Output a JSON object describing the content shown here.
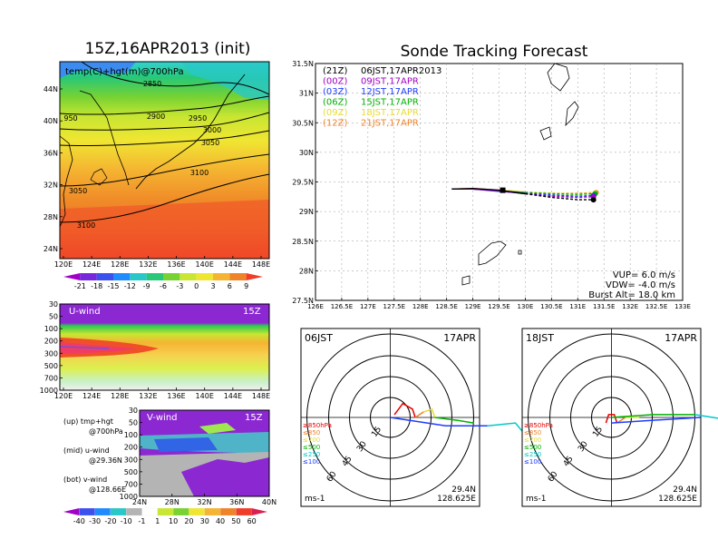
{
  "colors": {
    "bg": "#ffffff",
    "line": "#000000"
  },
  "left_title": "15Z,16APR2013 (init)",
  "right_title": "Sonde Tracking Forecast",
  "top_map": {
    "label": "temp(C)+hgt(m)@700hPa",
    "x_ticks": [
      "120E",
      "124E",
      "128E",
      "132E",
      "136E",
      "140E",
      "144E",
      "148E"
    ],
    "y_ticks": [
      "44N",
      "40N",
      "36N",
      "32N",
      "28N",
      "24N"
    ],
    "contour_labels": [
      "2850",
      "2900",
      "2950",
      "3000",
      "3050",
      "3100",
      "3050",
      "3100",
      "950"
    ],
    "colorbar_labels": [
      "-21",
      "-18",
      "-15",
      "-12",
      "-9",
      "-6",
      "-3",
      "0",
      "3",
      "6",
      "9"
    ]
  },
  "u_panel": {
    "label": "U-wind",
    "time": "15Z",
    "y_ticks": [
      "30",
      "50",
      "100",
      "200",
      "300",
      "500",
      "700",
      "1000"
    ],
    "x_ticks": [
      "120E",
      "124E",
      "128E",
      "132E",
      "136E",
      "140E",
      "144E",
      "148E"
    ]
  },
  "v_panel": {
    "label": "V-wind",
    "time": "15Z",
    "y_ticks": [
      "30",
      "50",
      "100",
      "200",
      "300",
      "500",
      "700",
      "1000"
    ],
    "x_ticks": [
      "24N",
      "28N",
      "32N",
      "36N",
      "40N"
    ],
    "colorbar_labels": [
      "-40",
      "-30",
      "-20",
      "-10",
      "-1",
      "1",
      "10",
      "20",
      "30",
      "40",
      "50",
      "60"
    ]
  },
  "notes": [
    {
      "a": "(up) tmp+hgt",
      "b": "@700hPa"
    },
    {
      "a": "(mid) u-wind",
      "b": "@29.36N"
    },
    {
      "a": "(bot) v-wind",
      "b": "@128.66E"
    }
  ],
  "track_map": {
    "x_ticks": [
      "126E",
      "126.5E",
      "127E",
      "127.5E",
      "128E",
      "128.5E",
      "129E",
      "129.5E",
      "130E",
      "130.5E",
      "131E",
      "131.5E",
      "132E",
      "132.5E",
      "133E"
    ],
    "y_ticks": [
      "31.5N",
      "31N",
      "30.5N",
      "30N",
      "29.5N",
      "29N",
      "28.5N",
      "28N",
      "27.5N"
    ],
    "legend": [
      {
        "code": "(21Z)",
        "time": "06JST,17APR2013",
        "color": "#000000"
      },
      {
        "code": "(00Z)",
        "time": "09JST,17APR",
        "color": "#a000c0"
      },
      {
        "code": "(03Z)",
        "time": "12JST,17APR",
        "color": "#1e3cff"
      },
      {
        "code": "(06Z)",
        "time": "15JST,17APR",
        "color": "#00b000"
      },
      {
        "code": "(09Z)",
        "time": "18JST,17APR",
        "color": "#e6dc32"
      },
      {
        "code": "(12Z)",
        "time": "21JST,17APR",
        "color": "#f08228"
      }
    ],
    "params": [
      "VUP= 6.0 m/s",
      "VDW= -4.0 m/s",
      "Burst Alt= 18.0 km"
    ]
  },
  "hodo": [
    {
      "time": "06JST",
      "date": "17APR",
      "rings": [
        "15",
        "30",
        "45",
        "60"
      ],
      "units": "ms-1",
      "lat": "29.4N",
      "lon": "128.625E",
      "levels": [
        "≥850hPa",
        "≤850",
        "≤700",
        "≤500",
        "≤250",
        "≤100"
      ]
    },
    {
      "time": "18JST",
      "date": "17APR",
      "rings": [
        "15",
        "30",
        "45",
        "60"
      ],
      "units": "ms-1",
      "lat": "29.4N",
      "lon": "128.625E",
      "levels": [
        "≥850hPa",
        "≤850",
        "≤700",
        "≤500",
        "≤250",
        "≤100"
      ]
    }
  ],
  "level_colors": [
    "#e60000",
    "#f08228",
    "#e6dc32",
    "#00b000",
    "#00c8c8",
    "#1e3cff"
  ],
  "chart_data": {
    "type": "line",
    "title": "Sonde Tracking Forecast",
    "xlim": [
      126,
      133
    ],
    "ylim": [
      27.5,
      31.5
    ],
    "launch": {
      "lon": 129.57,
      "lat": 29.36
    },
    "series": [
      {
        "name": "06JST,17APR2013",
        "lon": [
          128.6,
          129.0,
          129.5,
          130.0,
          130.5,
          131.0,
          131.3
        ],
        "lat": [
          29.38,
          29.39,
          29.36,
          29.3,
          29.24,
          29.2,
          29.2
        ]
      },
      {
        "name": "09JST,17APR",
        "lon": [
          128.6,
          129.0,
          129.5,
          130.0,
          130.5,
          131.0,
          131.3
        ],
        "lat": [
          29.38,
          29.38,
          29.35,
          29.3,
          29.26,
          29.24,
          29.25
        ]
      },
      {
        "name": "12JST,17APR",
        "lon": [
          128.6,
          129.0,
          129.5,
          130.0,
          130.5,
          131.0,
          131.3
        ],
        "lat": [
          29.38,
          29.38,
          29.34,
          29.31,
          29.28,
          29.26,
          29.27
        ]
      },
      {
        "name": "15JST,17APR",
        "lon": [
          128.6,
          129.0,
          129.5,
          130.0,
          130.5,
          131.0,
          131.33
        ],
        "lat": [
          29.38,
          29.38,
          29.35,
          29.32,
          29.3,
          29.29,
          29.3
        ]
      },
      {
        "name": "18JST,17APR",
        "lon": [
          128.6,
          129.0,
          129.5,
          130.0,
          130.5,
          131.0,
          131.33
        ],
        "lat": [
          29.38,
          29.39,
          29.36,
          29.33,
          29.31,
          29.3,
          29.31
        ]
      },
      {
        "name": "21JST,17APR",
        "lon": [
          128.6,
          129.0,
          129.5,
          130.0,
          130.5,
          131.0,
          131.35
        ],
        "lat": [
          29.38,
          29.39,
          29.36,
          29.33,
          29.31,
          29.31,
          29.32
        ]
      }
    ]
  }
}
